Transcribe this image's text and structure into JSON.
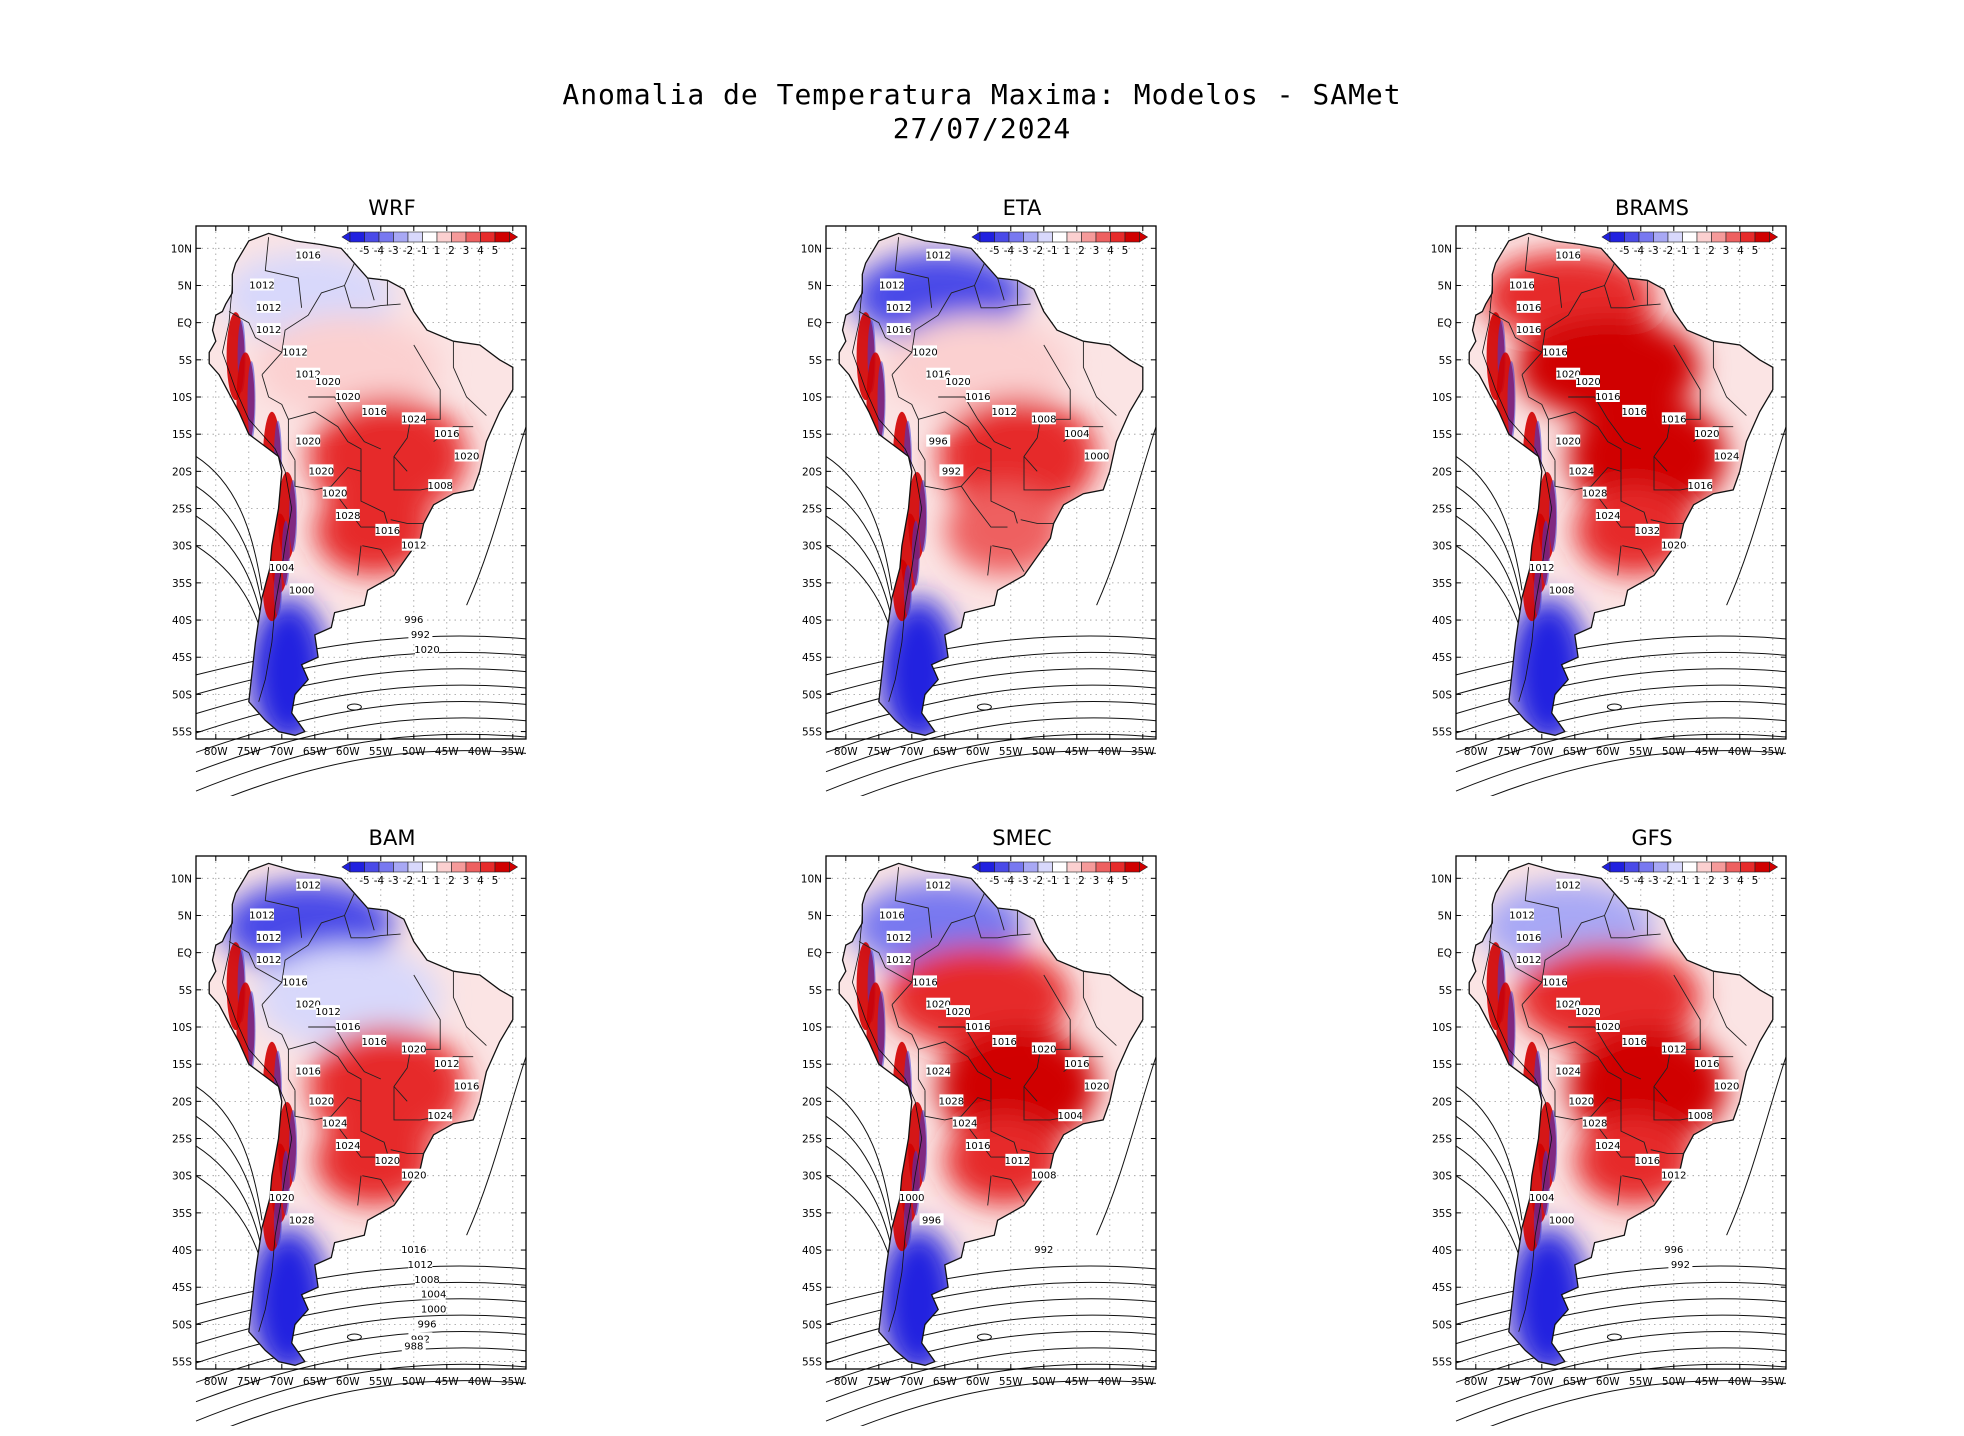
{
  "title": {
    "line1": "Anomalia de Temperatura Maxima: Modelos - SAMet",
    "line2": "27/07/2024"
  },
  "axes": {
    "lat_labels": [
      "10N",
      "5N",
      "EQ",
      "5S",
      "10S",
      "15S",
      "20S",
      "25S",
      "30S",
      "35S",
      "40S",
      "45S",
      "50S",
      "55S"
    ],
    "lon_labels": [
      "80W",
      "75W",
      "70W",
      "65W",
      "60W",
      "55W",
      "50W",
      "45W",
      "40W",
      "35W"
    ]
  },
  "colorbar": {
    "labels": [
      "-5",
      "-4",
      "-3",
      "-2",
      "-1",
      "1",
      "2",
      "3",
      "4",
      "5"
    ],
    "colors": [
      "#2020e0",
      "#4a4ae8",
      "#7878f0",
      "#a8a8f5",
      "#d8d8fb",
      "#ffffff",
      "#fbd0d0",
      "#f59a9a",
      "#ee6060",
      "#e62a2a",
      "#d00000"
    ]
  },
  "panels": [
    {
      "id": "wrf",
      "title": "WRF",
      "col": 0,
      "row": 0,
      "anomaly": {
        "north": -1,
        "amazon": 1,
        "center": 4,
        "south": 4,
        "patagonia": -5,
        "andes": 5
      },
      "isobar_labels": [
        "1016",
        "1012",
        "1012",
        "1012",
        "1012",
        "1012",
        "1020",
        "1020",
        "1016",
        "1024",
        "1016",
        "1020",
        "1020",
        "1020",
        "1020",
        "1028",
        "1016",
        "1012",
        "1008",
        "1004",
        "1000",
        "996",
        "992",
        "1020"
      ]
    },
    {
      "id": "eta",
      "title": "ETA",
      "col": 1,
      "row": 0,
      "anomaly": {
        "north": -4,
        "amazon": 1,
        "center": 4,
        "south": 3,
        "patagonia": -5,
        "andes": 5
      },
      "isobar_labels": [
        "1012",
        "1012",
        "1012",
        "1016",
        "1020",
        "1016",
        "1020",
        "1016",
        "1012",
        "1008",
        "1004",
        "1000",
        "996",
        "992"
      ]
    },
    {
      "id": "brams",
      "title": "BRAMS",
      "col": 2,
      "row": 0,
      "anomaly": {
        "north": 4,
        "amazon": 5,
        "center": 5,
        "south": 4,
        "patagonia": -5,
        "andes": 5
      },
      "isobar_labels": [
        "1016",
        "1016",
        "1016",
        "1016",
        "1016",
        "1020",
        "1020",
        "1016",
        "1016",
        "1016",
        "1020",
        "1024",
        "1020",
        "1024",
        "1028",
        "1024",
        "1032",
        "1020",
        "1016",
        "1012",
        "1008"
      ]
    },
    {
      "id": "bam",
      "title": "BAM",
      "col": 0,
      "row": 1,
      "anomaly": {
        "north": -4,
        "amazon": -1,
        "center": 4,
        "south": 4,
        "patagonia": -5,
        "andes": 5
      },
      "isobar_labels": [
        "1012",
        "1012",
        "1012",
        "1012",
        "1016",
        "1020",
        "1012",
        "1016",
        "1016",
        "1020",
        "1012",
        "1016",
        "1016",
        "1020",
        "1024",
        "1024",
        "1020",
        "1020",
        "1024",
        "1020",
        "1028",
        "1016",
        "1012",
        "1008",
        "1004",
        "1000",
        "996",
        "992",
        "988"
      ]
    },
    {
      "id": "smec",
      "title": "SMEC",
      "col": 1,
      "row": 1,
      "anomaly": {
        "north": -3,
        "amazon": 4,
        "center": 5,
        "south": 4,
        "patagonia": -5,
        "andes": 5
      },
      "isobar_labels": [
        "1012",
        "1016",
        "1012",
        "1012",
        "1016",
        "1020",
        "1020",
        "1016",
        "1016",
        "1020",
        "1016",
        "1020",
        "1024",
        "1028",
        "1024",
        "1016",
        "1012",
        "1008",
        "1004",
        "1000",
        "996",
        "992"
      ]
    },
    {
      "id": "gfs",
      "title": "GFS",
      "col": 2,
      "row": 1,
      "anomaly": {
        "north": -2,
        "amazon": 4,
        "center": 5,
        "south": 4,
        "patagonia": -5,
        "andes": 5
      },
      "isobar_labels": [
        "1012",
        "1012",
        "1016",
        "1012",
        "1016",
        "1020",
        "1020",
        "1020",
        "1016",
        "1012",
        "1016",
        "1020",
        "1024",
        "1020",
        "1028",
        "1024",
        "1016",
        "1012",
        "1008",
        "1004",
        "1000",
        "996",
        "992"
      ]
    }
  ]
}
